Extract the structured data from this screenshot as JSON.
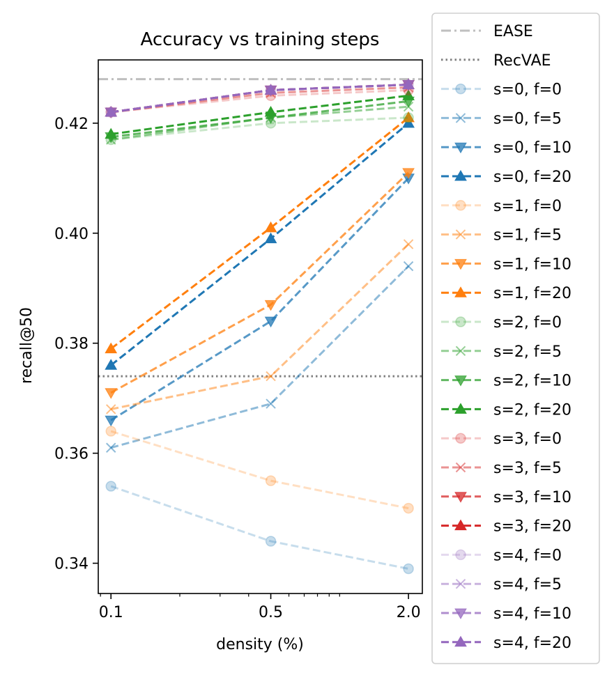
{
  "chart_data": {
    "type": "line",
    "title": "Accuracy vs training steps",
    "xlabel": "density (%)",
    "ylabel": "recall@50",
    "x_scale": "log",
    "x": [
      0.1,
      0.5,
      2.0
    ],
    "xticks": [
      "0.1",
      "0.5",
      "2.0"
    ],
    "xlim": [
      0.088,
      2.3
    ],
    "ylim": [
      0.3345,
      0.4315
    ],
    "yticks": [
      0.34,
      0.36,
      0.38,
      0.4,
      0.42
    ],
    "ytick_labels": [
      "0.34",
      "0.36",
      "0.38",
      "0.40",
      "0.42"
    ],
    "grid": false,
    "legend_placement": "outside-right",
    "reference_lines": [
      {
        "name": "EASE",
        "y": 0.428,
        "style": "dashdot",
        "color": "#bfbfbf"
      },
      {
        "name": "RecVAE",
        "y": 0.374,
        "style": "dotted",
        "color": "#808080"
      }
    ],
    "series": [
      {
        "name": "s=0, f=0",
        "color": "#1f77b4",
        "alpha": 0.25,
        "marker": "circle",
        "values": [
          0.354,
          0.344,
          0.339
        ]
      },
      {
        "name": "s=0, f=5",
        "color": "#1f77b4",
        "alpha": 0.5,
        "marker": "x",
        "values": [
          0.361,
          0.369,
          0.394
        ]
      },
      {
        "name": "s=0, f=10",
        "color": "#1f77b4",
        "alpha": 0.75,
        "marker": "triangle-down",
        "values": [
          0.366,
          0.384,
          0.41
        ]
      },
      {
        "name": "s=0, f=20",
        "color": "#1f77b4",
        "alpha": 1.0,
        "marker": "triangle-up",
        "values": [
          0.376,
          0.399,
          0.42
        ]
      },
      {
        "name": "s=1, f=0",
        "color": "#ff7f0e",
        "alpha": 0.25,
        "marker": "circle",
        "values": [
          0.364,
          0.355,
          0.35
        ]
      },
      {
        "name": "s=1, f=5",
        "color": "#ff7f0e",
        "alpha": 0.5,
        "marker": "x",
        "values": [
          0.368,
          0.374,
          0.398
        ]
      },
      {
        "name": "s=1, f=10",
        "color": "#ff7f0e",
        "alpha": 0.75,
        "marker": "triangle-down",
        "values": [
          0.371,
          0.387,
          0.411
        ]
      },
      {
        "name": "s=1, f=20",
        "color": "#ff7f0e",
        "alpha": 1.0,
        "marker": "triangle-up",
        "values": [
          0.379,
          0.401,
          0.421
        ]
      },
      {
        "name": "s=2, f=0",
        "color": "#2ca02c",
        "alpha": 0.25,
        "marker": "circle",
        "values": [
          0.417,
          0.42,
          0.421
        ]
      },
      {
        "name": "s=2, f=5",
        "color": "#2ca02c",
        "alpha": 0.5,
        "marker": "x",
        "values": [
          0.417,
          0.421,
          0.423
        ]
      },
      {
        "name": "s=2, f=10",
        "color": "#2ca02c",
        "alpha": 0.75,
        "marker": "triangle-down",
        "values": [
          0.4175,
          0.421,
          0.424
        ]
      },
      {
        "name": "s=2, f=20",
        "color": "#2ca02c",
        "alpha": 1.0,
        "marker": "triangle-up",
        "values": [
          0.418,
          0.422,
          0.425
        ]
      },
      {
        "name": "s=3, f=0",
        "color": "#d62728",
        "alpha": 0.25,
        "marker": "circle",
        "values": [
          0.422,
          0.425,
          0.426
        ]
      },
      {
        "name": "s=3, f=5",
        "color": "#d62728",
        "alpha": 0.5,
        "marker": "x",
        "values": [
          0.422,
          0.4255,
          0.4265
        ]
      },
      {
        "name": "s=3, f=10",
        "color": "#d62728",
        "alpha": 0.75,
        "marker": "triangle-down",
        "values": [
          0.422,
          0.426,
          0.427
        ]
      },
      {
        "name": "s=3, f=20",
        "color": "#d62728",
        "alpha": 1.0,
        "marker": "triangle-up",
        "values": [
          0.422,
          0.426,
          0.427
        ]
      },
      {
        "name": "s=4, f=0",
        "color": "#9467bd",
        "alpha": 0.25,
        "marker": "circle",
        "values": [
          0.422,
          0.426,
          0.427
        ]
      },
      {
        "name": "s=4, f=5",
        "color": "#9467bd",
        "alpha": 0.5,
        "marker": "x",
        "values": [
          0.422,
          0.426,
          0.427
        ]
      },
      {
        "name": "s=4, f=10",
        "color": "#9467bd",
        "alpha": 0.75,
        "marker": "triangle-down",
        "values": [
          0.422,
          0.426,
          0.427
        ]
      },
      {
        "name": "s=4, f=20",
        "color": "#9467bd",
        "alpha": 1.0,
        "marker": "triangle-up",
        "values": [
          0.422,
          0.426,
          0.427
        ]
      }
    ]
  }
}
